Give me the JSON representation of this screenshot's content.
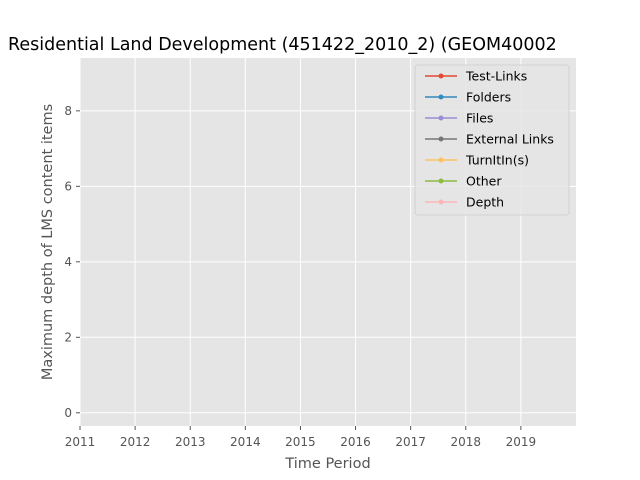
{
  "chart_data": {
    "type": "line",
    "title": "Residential Land Development (451422_2010_2) (GEOM40002",
    "xlabel": "Time Period",
    "ylabel": "Maximum depth of LMS content items",
    "xlim": [
      2011,
      2020
    ],
    "ylim": [
      -0.35,
      9.4
    ],
    "x_ticks": [
      "2011",
      "2012",
      "2013",
      "2014",
      "2015",
      "2016",
      "2017",
      "2018",
      "2019"
    ],
    "y_ticks": [
      "0",
      "2",
      "4",
      "6",
      "8"
    ],
    "grid": true,
    "legend_position": "top-right",
    "series": [
      {
        "name": "Test-Links",
        "color": "#E24A33",
        "values": []
      },
      {
        "name": "Folders",
        "color": "#348ABD",
        "values": []
      },
      {
        "name": "Files",
        "color": "#988ED5",
        "values": []
      },
      {
        "name": "External Links",
        "color": "#777777",
        "values": []
      },
      {
        "name": "TurnItIn(s)",
        "color": "#FBC15E",
        "values": []
      },
      {
        "name": "Other",
        "color": "#8EBA42",
        "values": []
      },
      {
        "name": "Depth",
        "color": "#FFB5B8",
        "values": []
      }
    ]
  }
}
